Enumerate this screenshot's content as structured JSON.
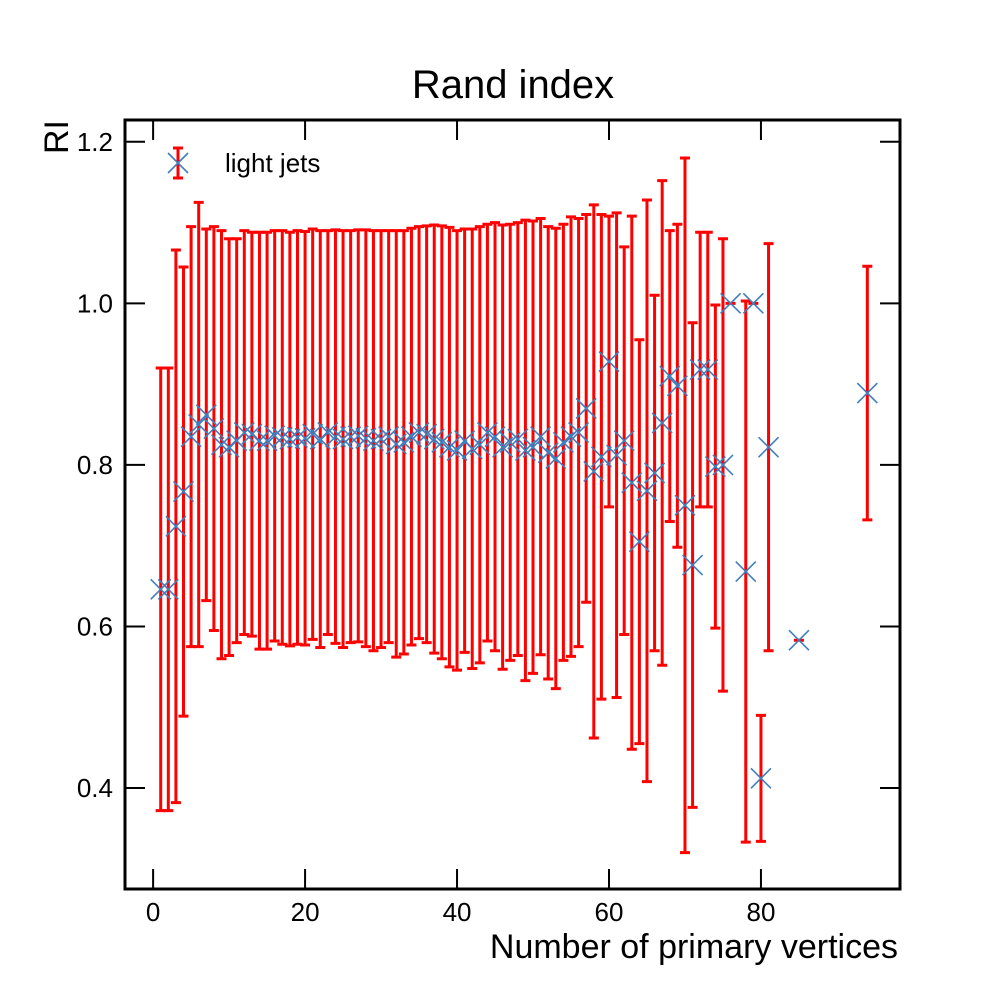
{
  "chart_data": {
    "type": "errorbar",
    "title": "Rand index",
    "xlabel": "Number of primary vertices",
    "ylabel": "RI",
    "xlim": [
      -3.7,
      98.3
    ],
    "ylim": [
      0.275,
      1.227
    ],
    "xticks": [
      0,
      20,
      40,
      60,
      80
    ],
    "yticks": [
      0.4,
      0.6,
      0.8,
      {
        "value": 1.0,
        "label": "1.0"
      },
      1.2
    ],
    "legend": "upper left",
    "series": [
      {
        "name": "light jets",
        "color": "#3f7fbf",
        "error_color": "#ff0000",
        "x": [
          1,
          2,
          3,
          4,
          5,
          6,
          7,
          8,
          9,
          10,
          11,
          12,
          13,
          14,
          15,
          16,
          17,
          18,
          19,
          20,
          21,
          22,
          23,
          24,
          25,
          26,
          27,
          28,
          29,
          30,
          31,
          32,
          33,
          34,
          35,
          36,
          37,
          38,
          39,
          40,
          41,
          42,
          43,
          44,
          45,
          46,
          47,
          48,
          49,
          50,
          51,
          52,
          53,
          54,
          55,
          56,
          57,
          58,
          59,
          60,
          61,
          62,
          63,
          64,
          65,
          66,
          67,
          68,
          69,
          70,
          71,
          72,
          73,
          74,
          75,
          76,
          78,
          79,
          80,
          81,
          85,
          94
        ],
        "values": [
          0.646,
          0.646,
          0.724,
          0.767,
          0.835,
          0.85,
          0.862,
          0.845,
          0.825,
          0.822,
          0.83,
          0.84,
          0.838,
          0.83,
          0.83,
          0.836,
          0.834,
          0.832,
          0.834,
          0.833,
          0.838,
          0.832,
          0.84,
          0.835,
          0.832,
          0.835,
          0.836,
          0.833,
          0.83,
          0.832,
          0.835,
          0.826,
          0.828,
          0.835,
          0.84,
          0.838,
          0.832,
          0.828,
          0.822,
          0.818,
          0.83,
          0.82,
          0.825,
          0.84,
          0.835,
          0.822,
          0.828,
          0.832,
          0.818,
          0.822,
          0.835,
          0.815,
          0.808,
          0.828,
          0.835,
          0.84,
          0.87,
          0.792,
          0.81,
          0.928,
          0.812,
          0.83,
          0.778,
          0.705,
          0.768,
          0.79,
          0.852,
          0.91,
          0.898,
          0.75,
          0.676,
          0.918,
          0.918,
          0.798,
          0.8,
          1.0,
          0.668,
          1.0,
          0.412,
          0.822,
          0.583,
          0.889
        ],
        "errors": [
          0.274,
          0.274,
          0.342,
          0.278,
          0.26,
          0.275,
          0.23,
          0.25,
          0.265,
          0.258,
          0.25,
          0.25,
          0.25,
          0.258,
          0.258,
          0.254,
          0.256,
          0.256,
          0.256,
          0.256,
          0.254,
          0.258,
          0.25,
          0.256,
          0.258,
          0.255,
          0.255,
          0.258,
          0.26,
          0.258,
          0.255,
          0.264,
          0.262,
          0.258,
          0.255,
          0.258,
          0.265,
          0.268,
          0.272,
          0.272,
          0.262,
          0.272,
          0.27,
          0.258,
          0.265,
          0.275,
          0.27,
          0.268,
          0.285,
          0.28,
          0.27,
          0.28,
          0.285,
          0.27,
          0.272,
          0.265,
          0.24,
          0.33,
          0.3,
          0.18,
          0.3,
          0.24,
          0.33,
          0.25,
          0.36,
          0.22,
          0.3,
          0.18,
          0.2,
          0.43,
          0.3,
          0.17,
          0.17,
          0.2,
          0.28,
          0,
          0.335,
          0,
          0.078,
          0.252,
          0,
          0.157
        ]
      }
    ]
  }
}
